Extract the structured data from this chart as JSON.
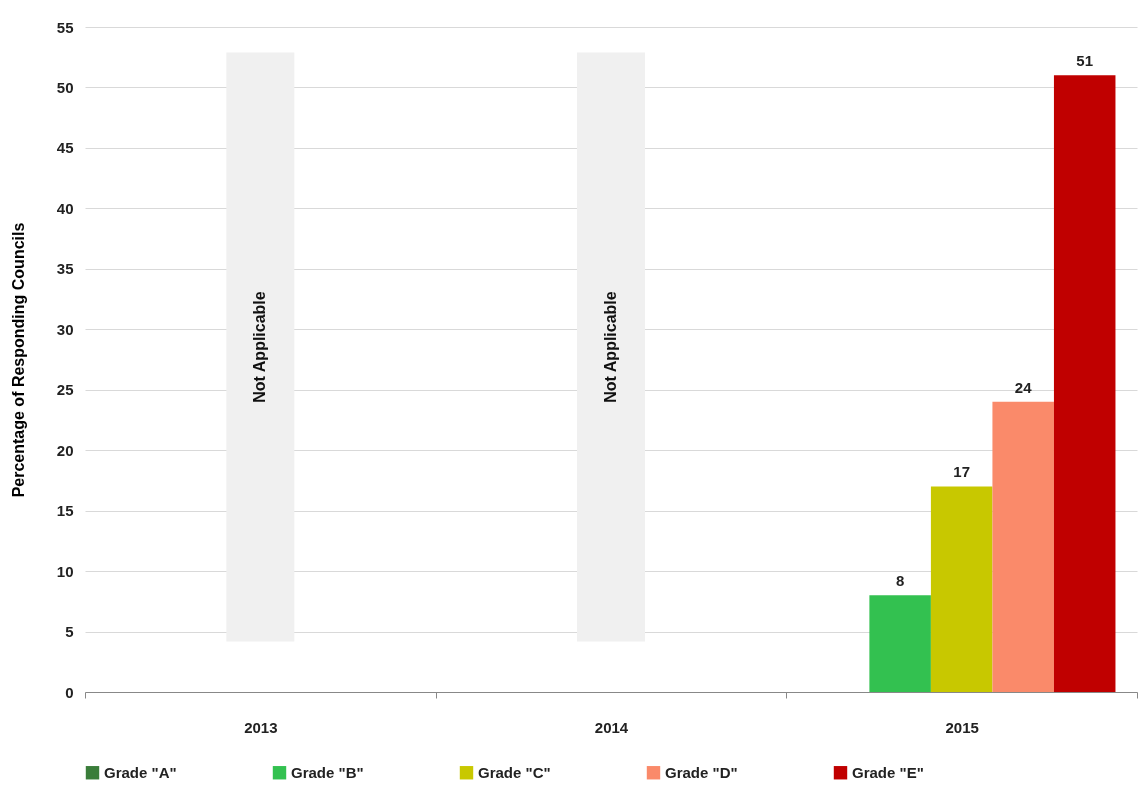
{
  "chart_data": {
    "type": "bar",
    "ylabel": "Percentage of Responding Councils",
    "categories": [
      "2013",
      "2014",
      "2015"
    ],
    "series": [
      {
        "name": "Grade \"A\"",
        "color": "#3a7d3a",
        "values": [
          null,
          null,
          null
        ]
      },
      {
        "name": "Grade \"B\"",
        "color": "#33c150",
        "values": [
          null,
          null,
          8
        ]
      },
      {
        "name": "Grade \"C\"",
        "color": "#c8c800",
        "values": [
          null,
          null,
          17
        ]
      },
      {
        "name": "Grade \"D\"",
        "color": "#fa8a6a",
        "values": [
          null,
          null,
          24
        ]
      },
      {
        "name": "Grade \"E\"",
        "color": "#c00000",
        "values": [
          null,
          null,
          51
        ]
      }
    ],
    "ylim": [
      0,
      55
    ],
    "yticks": [
      0,
      5,
      10,
      15,
      20,
      25,
      30,
      35,
      40,
      45,
      50,
      55
    ],
    "grid": "y",
    "legend": "bottom",
    "data_labels": true,
    "bands": [
      {
        "axis": "x",
        "from": "2013",
        "to": "2013",
        "label": "Not Applicable",
        "color": "#f0f0f0"
      },
      {
        "axis": "x",
        "from": "2014",
        "to": "2014",
        "label": "Not Applicable",
        "color": "#f0f0f0"
      }
    ]
  }
}
